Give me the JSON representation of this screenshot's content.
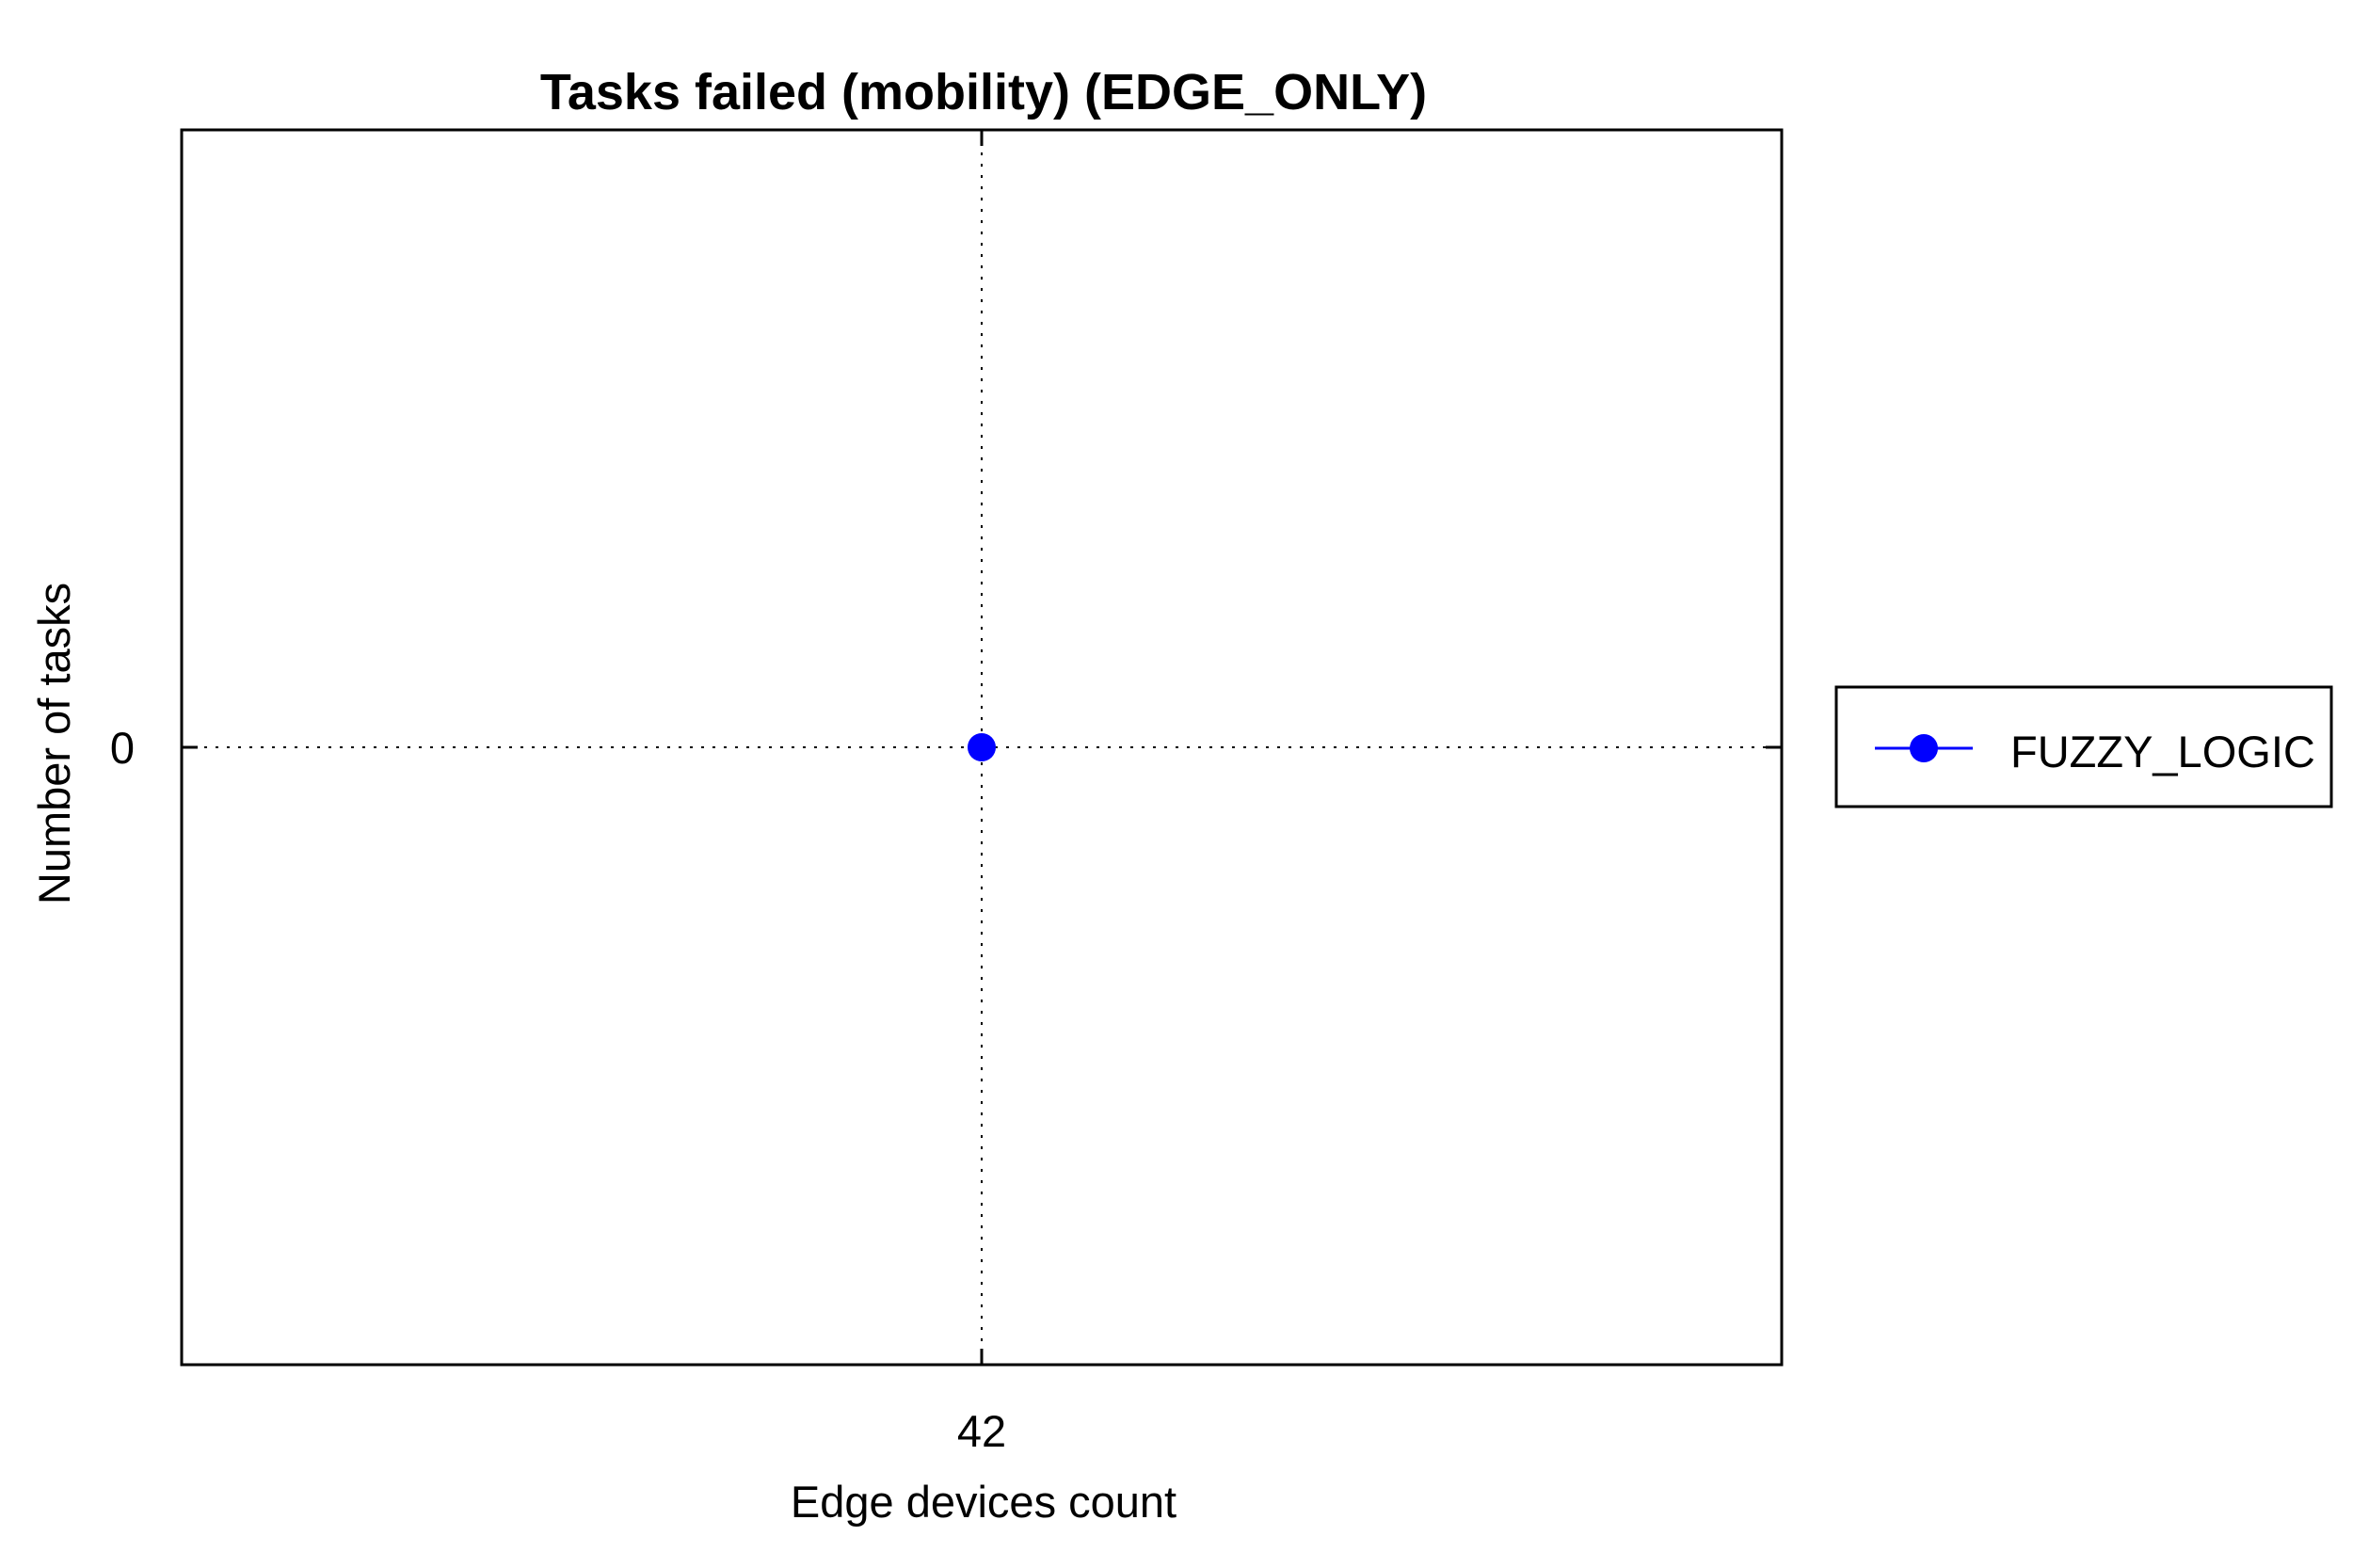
{
  "chart_data": {
    "type": "line",
    "title": "Tasks failed (mobility) (EDGE_ONLY)",
    "xlabel": "Edge devices count",
    "ylabel": "Number of tasks",
    "x": [
      42
    ],
    "x_tick_labels": [
      "42"
    ],
    "y_tick_labels": [
      "0"
    ],
    "y_ticks": [
      0
    ],
    "xlim": [
      41,
      43
    ],
    "ylim": [
      -1,
      1
    ],
    "grid": true,
    "legend_position": "outside-right",
    "series": [
      {
        "name": "FUZZY_LOGIC",
        "color": "#0000ff",
        "marker": "circle",
        "x": [
          42
        ],
        "values": [
          0
        ]
      }
    ]
  }
}
